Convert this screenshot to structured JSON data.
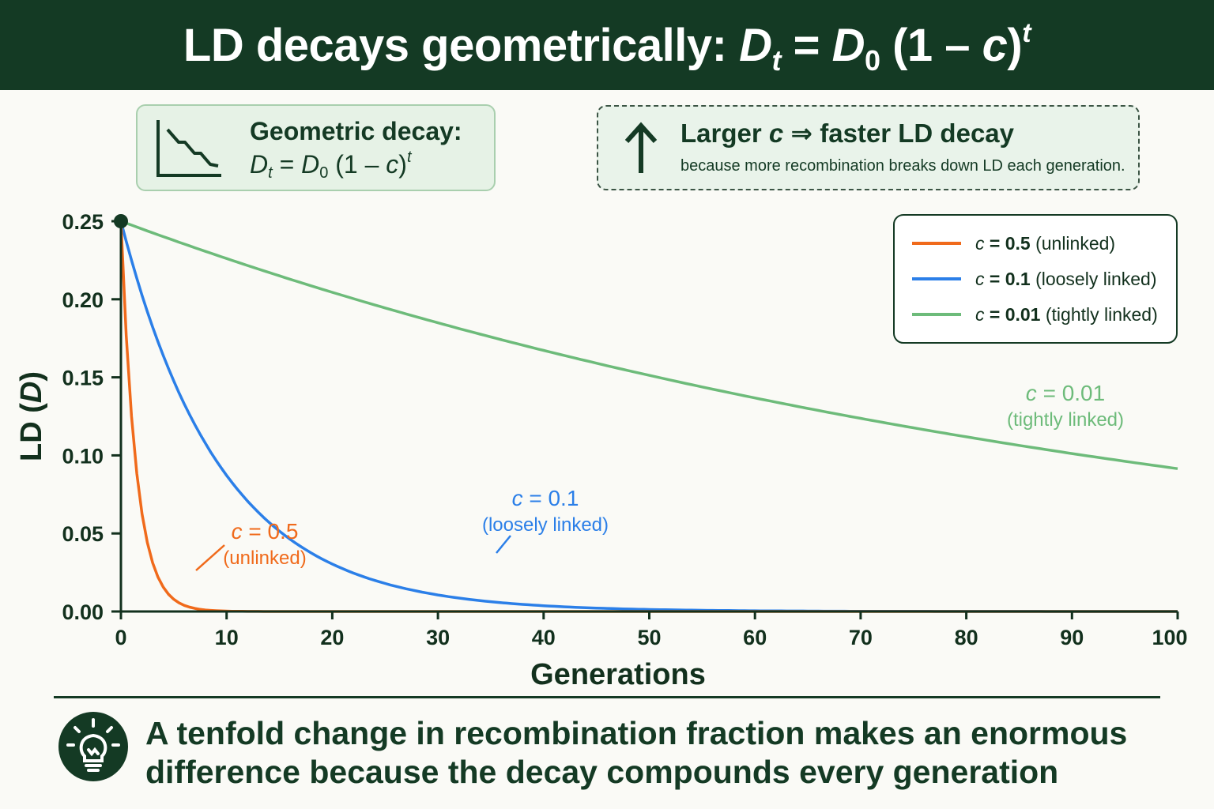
{
  "header": {
    "title_prefix": "LD decays geometrically: ",
    "title_D": "D",
    "title_sub_t": "t",
    "title_eq": " = ",
    "title_sub_0": "0",
    "title_paren": " (1 – ",
    "title_c": "c",
    "title_close": ")",
    "title_sup_t": "t"
  },
  "formula_card": {
    "label": "Geometric decay:",
    "D": "D",
    "sub_t": "t",
    "eq": " = ",
    "sub_0": "0",
    "paren": " (1 – ",
    "c": "c",
    "close": ")",
    "sup_t": "t",
    "icon": "decay-chart-icon"
  },
  "insight_card": {
    "head_prefix": "Larger ",
    "head_c": "c",
    "head_suffix": " ⇒ faster LD decay",
    "sub": "because more recombination breaks down LD each generation.",
    "icon": "arrow-up-icon"
  },
  "colors": {
    "dark_green": "#143a24",
    "unlinked": "#f06a1b",
    "loose": "#2b7fe8",
    "tight": "#6dbb7a"
  },
  "chart_data": {
    "type": "line",
    "xlabel": "Generations",
    "ylabel_prefix": "LD (",
    "ylabel_var": "D",
    "ylabel_suffix": ")",
    "xlim": [
      0,
      100
    ],
    "ylim": [
      0,
      0.25
    ],
    "x_ticks": [
      "0",
      "10",
      "20",
      "30",
      "40",
      "50",
      "60",
      "70",
      "80",
      "90",
      "100"
    ],
    "y_ticks": [
      "0.00",
      "0.05",
      "0.10",
      "0.15",
      "0.20",
      "0.25"
    ],
    "x_tick_values": [
      0,
      10,
      20,
      30,
      40,
      50,
      60,
      70,
      80,
      90,
      100
    ],
    "y_tick_values": [
      0,
      0.05,
      0.1,
      0.15,
      0.2,
      0.25
    ],
    "D0": 0.25,
    "grid": false,
    "legend_position": "top-right",
    "series": [
      {
        "name": "c = 0.5 (unlinked)",
        "legend_c": "c",
        "legend_val": " = 0.5",
        "legend_note": " (unlinked)",
        "c": 0.5,
        "color": "#f06a1b",
        "label_name": "c = 0.5",
        "label_note": "(unlinked)"
      },
      {
        "name": "c = 0.1 (loosely linked)",
        "legend_c": "c",
        "legend_val": " = 0.1",
        "legend_note": " (loosely linked)",
        "c": 0.1,
        "color": "#2b7fe8",
        "label_name": "c = 0.1",
        "label_note": "(loosely linked)"
      },
      {
        "name": "c = 0.01 (tightly linked)",
        "legend_c": "c",
        "legend_val": " = 0.01",
        "legend_note": " (tightly linked)",
        "c": 0.01,
        "color": "#6dbb7a",
        "label_name": "c = 0.01",
        "label_note": "(tightly linked)"
      }
    ]
  },
  "takeaway": {
    "text": "A tenfold change in recombination fraction makes an enormous difference because the decay compounds every generation",
    "icon": "lightbulb-icon"
  }
}
